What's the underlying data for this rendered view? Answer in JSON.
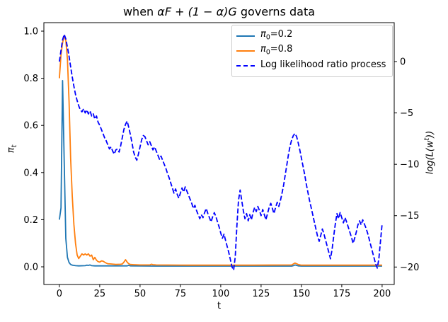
{
  "title": {
    "pre": "when ",
    "math": "αF + (1 − α)G",
    "post": " governs data"
  },
  "axes": {
    "x": {
      "label": "t",
      "tick_values": [
        0,
        25,
        50,
        75,
        100,
        125,
        150,
        175,
        200
      ],
      "tick_labels": [
        "0",
        "25",
        "50",
        "75",
        "100",
        "125",
        "150",
        "175",
        "200"
      ]
    },
    "y_left": {
      "label_base": "π",
      "label_sub": "t",
      "tick_values": [
        0.0,
        0.2,
        0.4,
        0.6,
        0.8,
        1.0
      ],
      "tick_labels": [
        "0.0",
        "0.2",
        "0.4",
        "0.6",
        "0.8",
        "1.0"
      ]
    },
    "y_right": {
      "label_pre": "log(L(w",
      "label_sup": "t",
      "label_post": "))",
      "tick_values": [
        0,
        -5,
        -10,
        -15,
        -20
      ],
      "tick_labels": [
        "0",
        "−5",
        "−10",
        "−15",
        "−20"
      ]
    }
  },
  "legend": {
    "items": [
      {
        "math": "π",
        "sub": "0",
        "rest": "=0.2",
        "color": "#1f77b4",
        "style": "solid"
      },
      {
        "math": "π",
        "sub": "0",
        "rest": "=0.8",
        "color": "#ff7f0e",
        "style": "solid"
      },
      {
        "math": "",
        "sub": "",
        "rest": "Log likelihood ratio process",
        "color": "#0000ff",
        "style": "dashed"
      }
    ]
  },
  "colors": {
    "spine": "#000000",
    "tick_label": "#000000",
    "background": "#ffffff",
    "legend_border": "#cccccc",
    "series_pi_02": "#1f77b4",
    "series_pi_08": "#ff7f0e",
    "series_llr": "#0000ff"
  },
  "chart_data": {
    "type": "line",
    "title": "when αF + (1 − α)G governs data",
    "xlabel": "t",
    "ylabel_left": "π_t",
    "ylabel_right": "log(L(w^t))",
    "grid": false,
    "legend_position": "upper right",
    "x_axis": {
      "range": [
        -9.6,
        207.5
      ],
      "ticks": [
        0,
        25,
        50,
        75,
        100,
        125,
        150,
        175,
        200
      ]
    },
    "y_left_axis": {
      "range": [
        -0.075,
        1.036
      ],
      "ticks": [
        0.0,
        0.2,
        0.4,
        0.6,
        0.8,
        1.0
      ]
    },
    "y_right_axis": {
      "range": [
        -21.7,
        3.79
      ],
      "ticks": [
        0,
        -5,
        -10,
        -15,
        -20
      ]
    },
    "series": [
      {
        "name": "π0=0.2",
        "axis": "left",
        "color": "#1f77b4",
        "style": "solid",
        "points": [
          [
            0,
            0.2
          ],
          [
            1,
            0.25
          ],
          [
            2,
            0.79
          ],
          [
            3,
            0.45
          ],
          [
            4,
            0.12
          ],
          [
            5,
            0.04
          ],
          [
            6,
            0.018
          ],
          [
            7,
            0.01
          ],
          [
            8,
            0.007
          ],
          [
            9,
            0.006
          ],
          [
            10,
            0.005
          ],
          [
            12,
            0.004
          ],
          [
            16,
            0.005
          ],
          [
            17,
            0.007
          ],
          [
            18,
            0.006
          ],
          [
            19,
            0.008
          ],
          [
            20,
            0.005
          ],
          [
            22,
            0.004
          ],
          [
            42,
            0.004
          ],
          [
            43,
            0.006
          ],
          [
            44,
            0.004
          ],
          [
            60,
            0.003
          ],
          [
            100,
            0.003
          ],
          [
            144,
            0.003
          ],
          [
            145,
            0.005
          ],
          [
            146,
            0.008
          ],
          [
            147,
            0.006
          ],
          [
            148,
            0.004
          ],
          [
            150,
            0.003
          ],
          [
            200,
            0.003
          ]
        ]
      },
      {
        "name": "π0=0.8",
        "axis": "left",
        "color": "#ff7f0e",
        "style": "solid",
        "points": [
          [
            0,
            0.8
          ],
          [
            1,
            0.9
          ],
          [
            2,
            0.95
          ],
          [
            3,
            0.98
          ],
          [
            4,
            0.96
          ],
          [
            5,
            0.88
          ],
          [
            6,
            0.7
          ],
          [
            7,
            0.46
          ],
          [
            8,
            0.3
          ],
          [
            9,
            0.18
          ],
          [
            10,
            0.1
          ],
          [
            11,
            0.05
          ],
          [
            12,
            0.035
          ],
          [
            13,
            0.045
          ],
          [
            14,
            0.055
          ],
          [
            15,
            0.05
          ],
          [
            16,
            0.055
          ],
          [
            17,
            0.05
          ],
          [
            18,
            0.055
          ],
          [
            19,
            0.045
          ],
          [
            20,
            0.05
          ],
          [
            21,
            0.03
          ],
          [
            22,
            0.04
          ],
          [
            23,
            0.028
          ],
          [
            24,
            0.022
          ],
          [
            25,
            0.02
          ],
          [
            26,
            0.025
          ],
          [
            27,
            0.024
          ],
          [
            28,
            0.02
          ],
          [
            29,
            0.016
          ],
          [
            30,
            0.013
          ],
          [
            32,
            0.012
          ],
          [
            35,
            0.01
          ],
          [
            38,
            0.011
          ],
          [
            39,
            0.012
          ],
          [
            40,
            0.02
          ],
          [
            41,
            0.03
          ],
          [
            42,
            0.02
          ],
          [
            43,
            0.013
          ],
          [
            44,
            0.01
          ],
          [
            46,
            0.009
          ],
          [
            50,
            0.008
          ],
          [
            56,
            0.008
          ],
          [
            57,
            0.011
          ],
          [
            58,
            0.009
          ],
          [
            60,
            0.008
          ],
          [
            80,
            0.007
          ],
          [
            120,
            0.007
          ],
          [
            144,
            0.008
          ],
          [
            145,
            0.012
          ],
          [
            146,
            0.016
          ],
          [
            147,
            0.013
          ],
          [
            148,
            0.01
          ],
          [
            150,
            0.007
          ],
          [
            200,
            0.007
          ]
        ]
      },
      {
        "name": "Log likelihood ratio process",
        "axis": "right",
        "color": "#0000ff",
        "style": "dashed",
        "t_start": 0,
        "t_step": 1,
        "values": [
          0.0,
          1.1,
          2.1,
          2.65,
          2.2,
          1.4,
          0.5,
          -0.5,
          -1.5,
          -2.4,
          -3.2,
          -3.8,
          -4.3,
          -4.7,
          -4.9,
          -4.6,
          -5.0,
          -4.7,
          -5.1,
          -4.8,
          -5.3,
          -5.1,
          -5.6,
          -5.3,
          -5.9,
          -6.2,
          -6.6,
          -7.0,
          -7.4,
          -7.7,
          -8.1,
          -8.5,
          -8.3,
          -8.7,
          -9.0,
          -8.6,
          -8.5,
          -8.8,
          -8.2,
          -7.4,
          -6.6,
          -6.1,
          -5.8,
          -6.4,
          -7.1,
          -7.9,
          -8.8,
          -9.3,
          -9.6,
          -9.0,
          -8.3,
          -7.6,
          -7.2,
          -7.3,
          -7.7,
          -8.1,
          -7.8,
          -8.2,
          -8.6,
          -8.3,
          -8.7,
          -9.1,
          -9.5,
          -9.2,
          -9.6,
          -10.0,
          -10.4,
          -10.9,
          -11.3,
          -11.8,
          -12.3,
          -12.8,
          -12.4,
          -12.9,
          -13.3,
          -12.8,
          -12.3,
          -12.7,
          -12.2,
          -12.6,
          -13.0,
          -13.4,
          -13.8,
          -14.3,
          -14.0,
          -14.5,
          -14.9,
          -15.3,
          -14.9,
          -15.2,
          -14.7,
          -14.3,
          -14.8,
          -15.2,
          -15.6,
          -15.1,
          -14.7,
          -15.1,
          -15.6,
          -16.1,
          -16.7,
          -17.2,
          -16.8,
          -17.4,
          -18.0,
          -18.6,
          -19.3,
          -20.0,
          -20.3,
          -19.0,
          -16.0,
          -13.5,
          -12.5,
          -13.5,
          -14.5,
          -15.3,
          -14.8,
          -15.5,
          -14.9,
          -15.4,
          -14.7,
          -14.2,
          -14.6,
          -14.1,
          -14.5,
          -15.0,
          -14.4,
          -14.9,
          -15.4,
          -14.8,
          -14.2,
          -13.8,
          -14.3,
          -14.8,
          -14.2,
          -13.7,
          -14.1,
          -13.5,
          -12.8,
          -12.0,
          -11.0,
          -10.0,
          -9.0,
          -8.2,
          -7.6,
          -7.2,
          -7.0,
          -7.3,
          -7.9,
          -8.6,
          -9.4,
          -10.2,
          -11.0,
          -11.9,
          -12.7,
          -13.5,
          -14.2,
          -14.9,
          -15.6,
          -16.3,
          -17.0,
          -17.5,
          -16.9,
          -16.3,
          -16.8,
          -17.4,
          -18.0,
          -18.6,
          -19.2,
          -18.3,
          -17.0,
          -15.8,
          -14.8,
          -15.3,
          -14.7,
          -15.2,
          -15.7,
          -15.2,
          -15.6,
          -16.1,
          -16.6,
          -17.1,
          -17.7,
          -17.2,
          -16.6,
          -15.9,
          -15.5,
          -15.9,
          -15.4,
          -15.8,
          -16.2,
          -16.7,
          -17.3,
          -17.9,
          -18.5,
          -19.1,
          -19.7,
          -20.1,
          -19.2,
          -17.5,
          -15.8
        ]
      }
    ]
  }
}
